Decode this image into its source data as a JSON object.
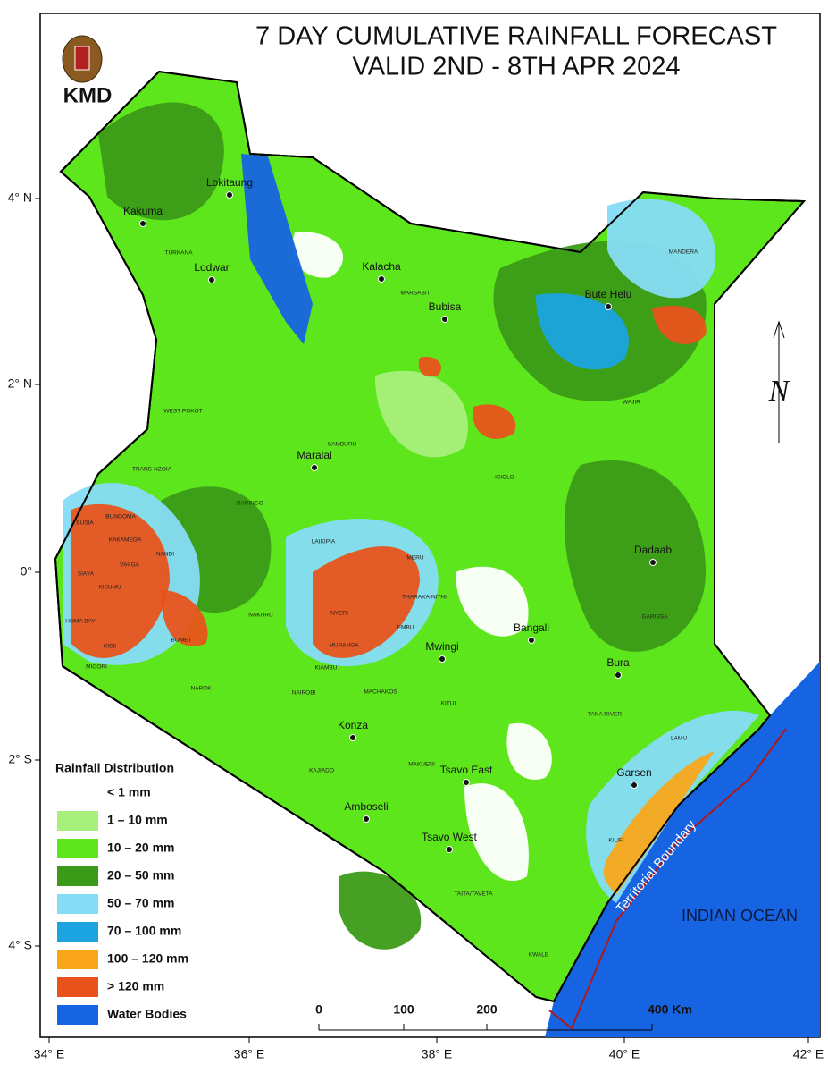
{
  "header": {
    "title_lines": [
      "7 DAY CUMULATIVE RAINFALL FORECAST",
      "VALID 2ND - 8TH APR 2024"
    ],
    "logo_text": "KMD"
  },
  "axes": {
    "longitude_labels": [
      "34° E",
      "36° E",
      "38° E",
      "40° E",
      "42° E"
    ],
    "latitude_labels": [
      "4° N",
      "2° N",
      "0°",
      "2° S",
      "4° S"
    ]
  },
  "towns": [
    "Lokitaung",
    "Kakuma",
    "Lodwar",
    "Kalacha",
    "Bubisa",
    "Bute Helu",
    "Maralal",
    "Dadaab",
    "Bangali",
    "Mwingi",
    "Bura",
    "Konza",
    "Tsavo East",
    "Garsen",
    "Amboseli",
    "Tsavo West"
  ],
  "regions": [
    "TURKANA",
    "MARSABIT",
    "MANDERA",
    "WEST POKOT",
    "WAJIR",
    "SAMBURU",
    "ISIOLO",
    "TRANS-NZOIA",
    "BARINGO",
    "BUNGOMA",
    "BUSIA",
    "KAKAMEGA",
    "LAIKIPIA",
    "MERU",
    "NANDI",
    "VIHIGA",
    "SIAYA",
    "KISUMU",
    "NYERI",
    "NAKURU",
    "THARAKA-NITHI",
    "EMBU",
    "HOMA BAY",
    "KISII",
    "BOMET",
    "MURANGA",
    "KIAMBU",
    "MIGORI",
    "GARISSA",
    "NAROK",
    "NAIROBI",
    "MACHAKOS",
    "KITUI",
    "TANA RIVER",
    "KAJIADO",
    "MAKUENI",
    "LAMU",
    "KILIFI",
    "TAITA/TAVETA",
    "KWALE"
  ],
  "legend": {
    "title": "Rainfall Distribution",
    "items": [
      {
        "label": "< 1 mm",
        "color": "#ffffff"
      },
      {
        "label": "1 – 10 mm",
        "color": "#a8f07c"
      },
      {
        "label": "10 – 20 mm",
        "color": "#5ee61c"
      },
      {
        "label": "20 – 50 mm",
        "color": "#3b9b18"
      },
      {
        "label": "50 – 70 mm",
        "color": "#86dcf5"
      },
      {
        "label": "70 – 100 mm",
        "color": "#1ba4e0"
      },
      {
        "label": "100 – 120 mm",
        "color": "#f9a61b"
      },
      {
        "label": "> 120 mm",
        "color": "#e8531b"
      },
      {
        "label": "Water Bodies",
        "color": "#1664e2"
      }
    ]
  },
  "scale_bar": {
    "labels": [
      "0",
      "100",
      "200",
      "400 Km"
    ]
  },
  "ocean_label": "INDIAN OCEAN",
  "boundary_label": "Territorial Boundary",
  "north_label": "N"
}
